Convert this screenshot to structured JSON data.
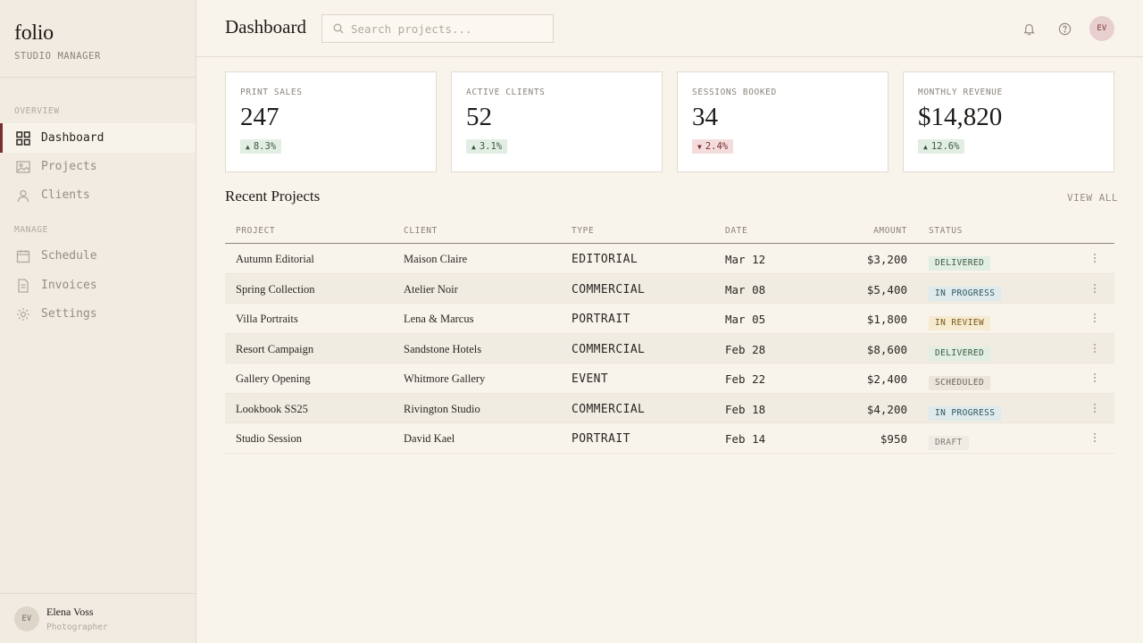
{
  "app": {
    "logo": "folio",
    "subtitle": "STUDIO MANAGER"
  },
  "sidebar": {
    "sections": [
      {
        "title": "OVERVIEW",
        "items": [
          {
            "label": "Dashboard",
            "icon": "grid-icon",
            "active": true
          },
          {
            "label": "Projects",
            "icon": "image-icon"
          },
          {
            "label": "Clients",
            "icon": "user-icon"
          }
        ]
      },
      {
        "title": "MANAGE",
        "items": [
          {
            "label": "Schedule",
            "icon": "calendar-icon"
          },
          {
            "label": "Invoices",
            "icon": "document-icon"
          },
          {
            "label": "Settings",
            "icon": "gear-icon"
          }
        ]
      }
    ]
  },
  "user": {
    "initials": "EV",
    "name": "Elena Voss",
    "role": "Photographer"
  },
  "header": {
    "title": "Dashboard",
    "search_placeholder": "Search projects...",
    "avatar_initials": "EV",
    "icons": [
      "bell-icon",
      "help-icon"
    ]
  },
  "stats": [
    {
      "label": "PRINT SALES",
      "value": "247",
      "delta": "8.3%",
      "trend": "up"
    },
    {
      "label": "ACTIVE CLIENTS",
      "value": "52",
      "delta": "3.1%",
      "trend": "up"
    },
    {
      "label": "SESSIONS BOOKED",
      "value": "34",
      "delta": "2.4%",
      "trend": "down"
    },
    {
      "label": "MONTHLY REVENUE",
      "value": "$14,820",
      "delta": "12.6%",
      "trend": "up"
    }
  ],
  "recent": {
    "title": "Recent Projects",
    "view_all": "VIEW ALL",
    "columns": [
      "PROJECT",
      "CLIENT",
      "TYPE",
      "DATE",
      "AMOUNT",
      "STATUS"
    ],
    "rows": [
      {
        "project": "Autumn Editorial",
        "client": "Maison Claire",
        "type": "EDITORIAL",
        "date": "Mar 12",
        "amount": "$3,200",
        "status": "DELIVERED"
      },
      {
        "project": "Spring Collection",
        "client": "Atelier Noir",
        "type": "COMMERCIAL",
        "date": "Mar 08",
        "amount": "$5,400",
        "status": "IN PROGRESS"
      },
      {
        "project": "Villa Portraits",
        "client": "Lena & Marcus",
        "type": "PORTRAIT",
        "date": "Mar 05",
        "amount": "$1,800",
        "status": "IN REVIEW"
      },
      {
        "project": "Resort Campaign",
        "client": "Sandstone Hotels",
        "type": "COMMERCIAL",
        "date": "Feb 28",
        "amount": "$8,600",
        "status": "DELIVERED"
      },
      {
        "project": "Gallery Opening",
        "client": "Whitmore Gallery",
        "type": "EVENT",
        "date": "Feb 22",
        "amount": "$2,400",
        "status": "SCHEDULED"
      },
      {
        "project": "Lookbook SS25",
        "client": "Rivington Studio",
        "type": "COMMERCIAL",
        "date": "Feb 18",
        "amount": "$4,200",
        "status": "IN PROGRESS"
      },
      {
        "project": "Studio Session",
        "client": "David Kael",
        "type": "PORTRAIT",
        "date": "Feb 14",
        "amount": "$950",
        "status": "DRAFT"
      }
    ]
  },
  "colors": {
    "accent": "#7a2e2e",
    "background": "#f8f4ec",
    "sidebar": "#f1ebe1",
    "status": {
      "DELIVERED": {
        "bg": "#e2ede3",
        "fg": "#3a5a3f"
      },
      "IN PROGRESS": {
        "bg": "#dfeaec",
        "fg": "#2f5560"
      },
      "IN REVIEW": {
        "bg": "#f6ead0",
        "fg": "#7a5a1a"
      },
      "SCHEDULED": {
        "bg": "#ebe5da",
        "fg": "#6e665d"
      },
      "DRAFT": {
        "bg": "#efebe5",
        "fg": "#857c72"
      }
    }
  }
}
